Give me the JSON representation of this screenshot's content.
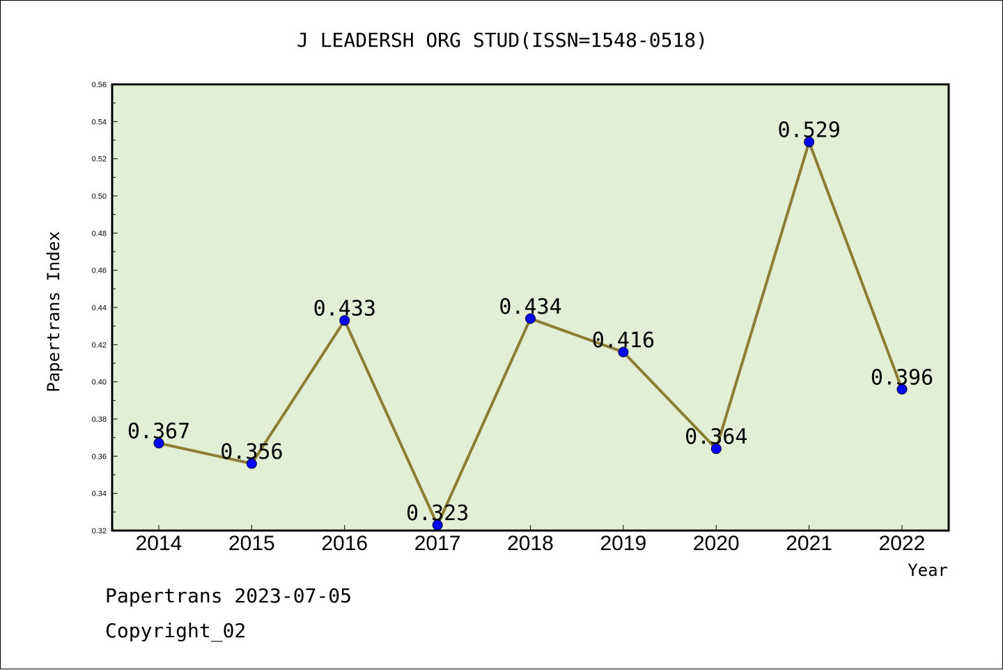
{
  "footer": {
    "line1": "Papertrans 2023-07-05",
    "line2": "Copyright_02"
  },
  "chart_data": {
    "type": "line",
    "title": "J LEADERSH ORG STUD(ISSN=1548-0518)",
    "xlabel": "Year",
    "ylabel": "Papertrans Index",
    "categories": [
      "2014",
      "2015",
      "2016",
      "2017",
      "2018",
      "2019",
      "2020",
      "2021",
      "2022"
    ],
    "values": [
      0.367,
      0.356,
      0.433,
      0.323,
      0.434,
      0.416,
      0.364,
      0.529,
      0.396
    ],
    "data_labels": [
      "0.367",
      "0.356",
      "0.433",
      "0.323",
      "0.434",
      "0.416",
      "0.364",
      "0.529",
      "0.396"
    ],
    "ylim": [
      0.32,
      0.56
    ],
    "yticks": [
      "0.32",
      "0.34",
      "0.36",
      "0.38",
      "0.40",
      "0.42",
      "0.44",
      "0.46",
      "0.48",
      "0.50",
      "0.52",
      "0.54",
      "0.56"
    ],
    "grid": false,
    "colors": {
      "plot_background": "#e2efd5",
      "line": "#8b7d35",
      "marker": "#0000ff"
    }
  }
}
